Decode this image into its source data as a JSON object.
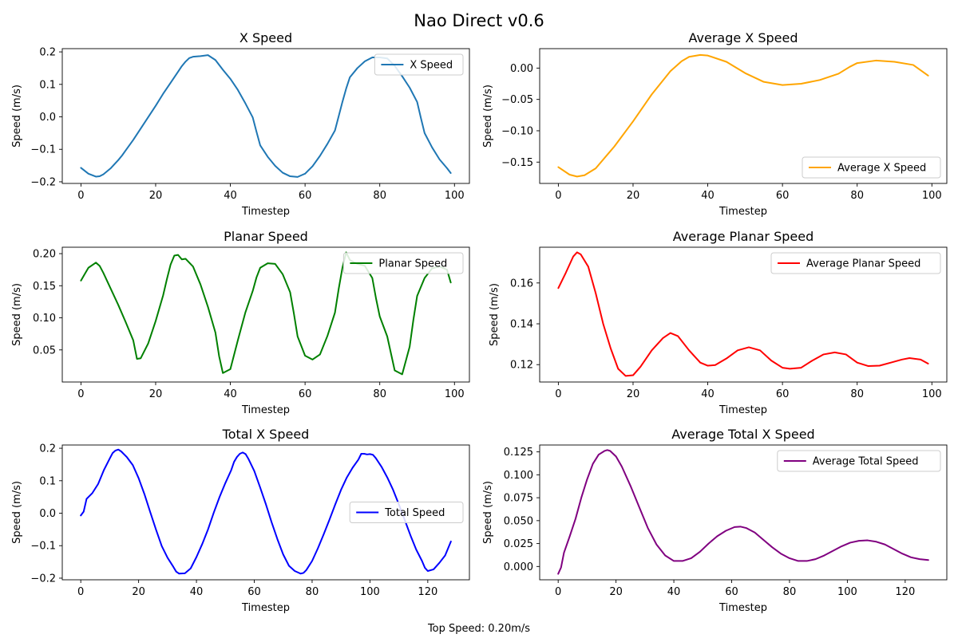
{
  "figure": {
    "suptitle": "Nao Direct v0.6",
    "footer": "Top Speed: 0.20m/s"
  },
  "chart_data": [
    {
      "type": "line",
      "title": "X Speed",
      "xlabel": "Timestep",
      "ylabel": "Speed (m/s)",
      "xlim": [
        -5,
        104
      ],
      "ylim": [
        -0.205,
        0.21
      ],
      "xticks": [
        0,
        20,
        40,
        60,
        80,
        100
      ],
      "yticks": [
        -0.2,
        -0.1,
        0.0,
        0.1,
        0.2
      ],
      "ytick_labels": [
        "−0.2",
        "−0.1",
        "0.0",
        "0.1",
        "0.2"
      ],
      "legend": "top-right",
      "grid": false,
      "series": [
        {
          "name": "X Speed",
          "color": "#1f77b4",
          "x": [
            0,
            2,
            4,
            5,
            6,
            8,
            10,
            11,
            12,
            14,
            16,
            18,
            20,
            22,
            24,
            26,
            27,
            28,
            29,
            30,
            32,
            34,
            36,
            38,
            40,
            42,
            44,
            46,
            47,
            48,
            50,
            52,
            54,
            56,
            58,
            60,
            62,
            64,
            66,
            68,
            69,
            70,
            71,
            72,
            74,
            76,
            78,
            80,
            82,
            84,
            86,
            88,
            90,
            91,
            92,
            94,
            96,
            98,
            99
          ],
          "y": [
            -0.157,
            -0.175,
            -0.184,
            -0.183,
            -0.177,
            -0.158,
            -0.133,
            -0.119,
            -0.103,
            -0.071,
            -0.036,
            -0.001,
            0.034,
            0.071,
            0.105,
            0.139,
            0.156,
            0.17,
            0.181,
            0.185,
            0.187,
            0.19,
            0.175,
            0.145,
            0.117,
            0.083,
            0.042,
            -0.002,
            -0.046,
            -0.088,
            -0.123,
            -0.151,
            -0.172,
            -0.183,
            -0.185,
            -0.175,
            -0.152,
            -0.12,
            -0.083,
            -0.042,
            0.002,
            0.046,
            0.087,
            0.122,
            0.15,
            0.171,
            0.183,
            0.183,
            0.18,
            0.157,
            0.125,
            0.09,
            0.046,
            -0.003,
            -0.05,
            -0.094,
            -0.131,
            -0.158,
            -0.173
          ]
        }
      ]
    },
    {
      "type": "line",
      "title": "Average X Speed",
      "xlabel": "Timestep",
      "ylabel": "Speed (m/s)",
      "xlim": [
        -5,
        104
      ],
      "ylim": [
        -0.184,
        0.031
      ],
      "xticks": [
        0,
        20,
        40,
        60,
        80,
        100
      ],
      "yticks": [
        -0.15,
        -0.1,
        -0.05,
        0.0
      ],
      "ytick_labels": [
        "−0.15",
        "−0.10",
        "−0.05",
        "0.00"
      ],
      "legend": "bottom-right",
      "grid": false,
      "series": [
        {
          "name": "Average X Speed",
          "color": "#ffa500",
          "x": [
            0,
            3,
            5,
            7,
            10,
            15,
            20,
            25,
            30,
            33,
            35,
            38,
            40,
            45,
            50,
            55,
            60,
            65,
            70,
            75,
            78,
            80,
            85,
            90,
            95,
            99
          ],
          "y": [
            -0.158,
            -0.17,
            -0.173,
            -0.171,
            -0.16,
            -0.125,
            -0.085,
            -0.042,
            -0.005,
            0.011,
            0.018,
            0.021,
            0.02,
            0.01,
            -0.008,
            -0.022,
            -0.027,
            -0.025,
            -0.019,
            -0.009,
            0.002,
            0.008,
            0.012,
            0.01,
            0.005,
            -0.012
          ]
        }
      ]
    },
    {
      "type": "line",
      "title": "Planar Speed",
      "xlabel": "Timestep",
      "ylabel": "Speed (m/s)",
      "xlim": [
        -5,
        104
      ],
      "ylim": [
        0.0,
        0.21
      ],
      "xticks": [
        0,
        20,
        40,
        60,
        80,
        100
      ],
      "yticks": [
        0.05,
        0.1,
        0.15,
        0.2
      ],
      "ytick_labels": [
        "0.05",
        "0.10",
        "0.15",
        "0.20"
      ],
      "legend": "top-right",
      "grid": false,
      "series": [
        {
          "name": "Planar Speed",
          "color": "#008000",
          "x": [
            0,
            1,
            2,
            4,
            5,
            6,
            8,
            10,
            12,
            14,
            15,
            16,
            18,
            20,
            22,
            23,
            24,
            25,
            26,
            27,
            28,
            30,
            32,
            34,
            36,
            37,
            38,
            40,
            42,
            44,
            46,
            47,
            48,
            50,
            52,
            54,
            56,
            57,
            58,
            60,
            62,
            64,
            66,
            68,
            69,
            70,
            71,
            72,
            74,
            76,
            78,
            79,
            80,
            82,
            84,
            86,
            88,
            89,
            90,
            92,
            94,
            96,
            98,
            99
          ],
          "y": [
            0.158,
            0.168,
            0.178,
            0.186,
            0.181,
            0.17,
            0.145,
            0.12,
            0.093,
            0.065,
            0.036,
            0.037,
            0.06,
            0.095,
            0.135,
            0.16,
            0.183,
            0.197,
            0.198,
            0.191,
            0.192,
            0.18,
            0.152,
            0.117,
            0.077,
            0.04,
            0.014,
            0.02,
            0.065,
            0.108,
            0.142,
            0.163,
            0.178,
            0.185,
            0.184,
            0.168,
            0.14,
            0.107,
            0.071,
            0.041,
            0.035,
            0.043,
            0.072,
            0.108,
            0.145,
            0.178,
            0.202,
            0.19,
            0.184,
            0.181,
            0.162,
            0.13,
            0.102,
            0.071,
            0.018,
            0.012,
            0.055,
            0.097,
            0.134,
            0.162,
            0.177,
            0.18,
            0.175,
            0.155
          ]
        }
      ]
    },
    {
      "type": "line",
      "title": "Average Planar Speed",
      "xlabel": "Timestep",
      "ylabel": "Speed (m/s)",
      "xlim": [
        -5,
        104
      ],
      "ylim": [
        0.1115,
        0.1775
      ],
      "xticks": [
        0,
        20,
        40,
        60,
        80,
        100
      ],
      "yticks": [
        0.12,
        0.14,
        0.16
      ],
      "ytick_labels": [
        "0.12",
        "0.14",
        "0.16"
      ],
      "legend": "top-right",
      "grid": false,
      "series": [
        {
          "name": "Average Planar Speed",
          "color": "#ff0000",
          "x": [
            0,
            2,
            4,
            5,
            6,
            8,
            10,
            12,
            14,
            16,
            18,
            20,
            22,
            25,
            28,
            30,
            32,
            35,
            38,
            40,
            42,
            45,
            48,
            51,
            54,
            57,
            60,
            62,
            65,
            68,
            71,
            74,
            77,
            80,
            83,
            86,
            89,
            92,
            94,
            97,
            99
          ],
          "y": [
            0.1575,
            0.165,
            0.173,
            0.175,
            0.174,
            0.168,
            0.155,
            0.14,
            0.128,
            0.118,
            0.1145,
            0.1148,
            0.119,
            0.127,
            0.133,
            0.1355,
            0.134,
            0.127,
            0.121,
            0.1195,
            0.1198,
            0.123,
            0.127,
            0.1285,
            0.127,
            0.122,
            0.1185,
            0.118,
            0.1185,
            0.122,
            0.125,
            0.126,
            0.125,
            0.121,
            0.1193,
            0.1195,
            0.121,
            0.1225,
            0.1232,
            0.1225,
            0.1205
          ]
        }
      ]
    },
    {
      "type": "line",
      "title": "Total X Speed",
      "xlabel": "Timestep",
      "ylabel": "Speed (m/s)",
      "xlim": [
        -6.4,
        134.4
      ],
      "ylim": [
        -0.205,
        0.21
      ],
      "xticks": [
        0,
        20,
        40,
        60,
        80,
        100,
        120
      ],
      "yticks": [
        -0.2,
        -0.1,
        0.0,
        0.1,
        0.2
      ],
      "ytick_labels": [
        "−0.2",
        "−0.1",
        "0.0",
        "0.1",
        "0.2"
      ],
      "legend": "center-right",
      "grid": false,
      "series": [
        {
          "name": "Total Speed",
          "color": "#0000ff",
          "x": [
            0,
            1,
            2,
            4,
            6,
            8,
            10,
            11,
            12,
            13,
            14,
            16,
            18,
            20,
            22,
            24,
            26,
            28,
            30,
            32,
            33,
            34,
            36,
            38,
            40,
            42,
            44,
            46,
            48,
            50,
            52,
            53,
            54,
            55,
            56,
            57,
            58,
            60,
            62,
            64,
            66,
            68,
            70,
            72,
            74,
            76,
            77,
            78,
            80,
            82,
            84,
            86,
            88,
            90,
            92,
            94,
            96,
            97,
            98,
            99,
            100,
            101,
            102,
            104,
            106,
            108,
            110,
            112,
            114,
            116,
            118,
            119,
            120,
            122,
            124,
            126,
            128
          ],
          "y": [
            -0.007,
            0.005,
            0.044,
            0.062,
            0.09,
            0.133,
            0.168,
            0.185,
            0.193,
            0.196,
            0.19,
            0.172,
            0.148,
            0.108,
            0.059,
            0.004,
            -0.05,
            -0.101,
            -0.137,
            -0.165,
            -0.18,
            -0.186,
            -0.185,
            -0.17,
            -0.135,
            -0.095,
            -0.05,
            0.002,
            0.05,
            0.093,
            0.132,
            0.158,
            0.173,
            0.183,
            0.187,
            0.182,
            0.167,
            0.13,
            0.08,
            0.028,
            -0.028,
            -0.08,
            -0.127,
            -0.162,
            -0.178,
            -0.186,
            -0.184,
            -0.175,
            -0.147,
            -0.108,
            -0.065,
            -0.02,
            0.027,
            0.072,
            0.11,
            0.14,
            0.165,
            0.183,
            0.183,
            0.181,
            0.182,
            0.18,
            0.17,
            0.143,
            0.11,
            0.072,
            0.027,
            -0.02,
            -0.068,
            -0.112,
            -0.147,
            -0.168,
            -0.178,
            -0.173,
            -0.153,
            -0.13,
            -0.087
          ]
        }
      ]
    },
    {
      "type": "line",
      "title": "Average Total X Speed",
      "xlabel": "Timestep",
      "ylabel": "Speed (m/s)",
      "xlim": [
        -6.4,
        134.4
      ],
      "ylim": [
        -0.0145,
        0.1325
      ],
      "xticks": [
        0,
        20,
        40,
        60,
        80,
        100,
        120
      ],
      "yticks": [
        0.0,
        0.025,
        0.05,
        0.075,
        0.1,
        0.125
      ],
      "ytick_labels": [
        "0.000",
        "0.025",
        "0.050",
        "0.075",
        "0.100",
        "0.125"
      ],
      "legend": "top-right",
      "grid": false,
      "series": [
        {
          "name": "Average Total Speed",
          "color": "#800080",
          "x": [
            0,
            1,
            2,
            4,
            6,
            8,
            10,
            12,
            14,
            16,
            17,
            18,
            20,
            22,
            25,
            28,
            31,
            34,
            37,
            40,
            43,
            46,
            49,
            52,
            55,
            58,
            61,
            63,
            65,
            68,
            71,
            74,
            77,
            80,
            83,
            86,
            89,
            92,
            95,
            98,
            101,
            104,
            107,
            110,
            113,
            116,
            119,
            122,
            125,
            128
          ],
          "y": [
            -0.008,
            -0.001,
            0.015,
            0.033,
            0.052,
            0.075,
            0.095,
            0.112,
            0.122,
            0.126,
            0.127,
            0.126,
            0.12,
            0.109,
            0.088,
            0.065,
            0.042,
            0.024,
            0.012,
            0.006,
            0.006,
            0.009,
            0.016,
            0.025,
            0.033,
            0.039,
            0.043,
            0.0435,
            0.042,
            0.037,
            0.029,
            0.021,
            0.014,
            0.009,
            0.006,
            0.006,
            0.008,
            0.012,
            0.017,
            0.022,
            0.026,
            0.028,
            0.0285,
            0.027,
            0.024,
            0.019,
            0.014,
            0.01,
            0.008,
            0.007
          ]
        }
      ]
    }
  ]
}
